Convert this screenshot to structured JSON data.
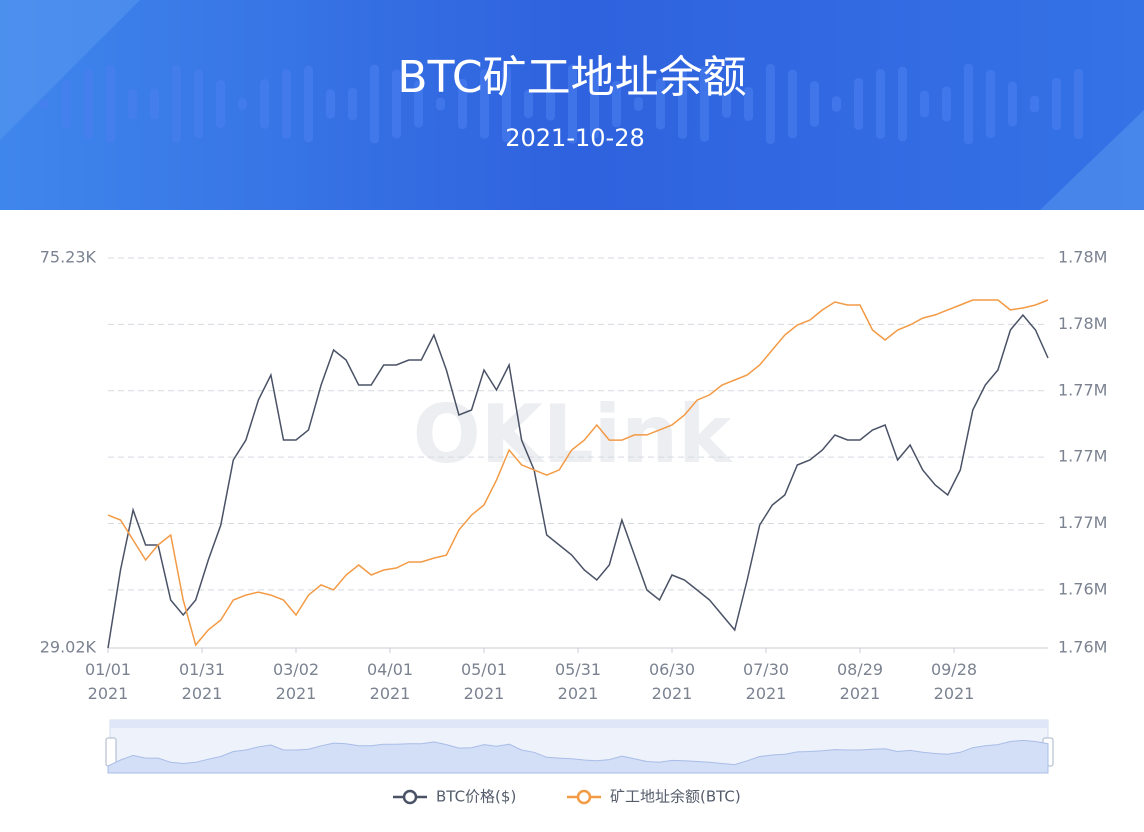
{
  "header": {
    "title": "BTC矿工地址余额",
    "date": "2021-10-28"
  },
  "watermark": "OKLink",
  "chart_data": {
    "type": "line",
    "x": [
      "2021-01-01",
      "2021-01-05",
      "2021-01-09",
      "2021-01-13",
      "2021-01-17",
      "2021-01-21",
      "2021-01-25",
      "2021-01-29",
      "2021-02-02",
      "2021-02-06",
      "2021-02-10",
      "2021-02-14",
      "2021-02-18",
      "2021-02-22",
      "2021-02-26",
      "2021-03-02",
      "2021-03-06",
      "2021-03-10",
      "2021-03-14",
      "2021-03-18",
      "2021-03-22",
      "2021-03-26",
      "2021-03-30",
      "2021-04-03",
      "2021-04-07",
      "2021-04-11",
      "2021-04-15",
      "2021-04-19",
      "2021-04-23",
      "2021-04-27",
      "2021-05-01",
      "2021-05-05",
      "2021-05-09",
      "2021-05-13",
      "2021-05-17",
      "2021-05-21",
      "2021-05-25",
      "2021-05-29",
      "2021-06-02",
      "2021-06-06",
      "2021-06-10",
      "2021-06-14",
      "2021-06-18",
      "2021-06-22",
      "2021-06-26",
      "2021-06-30",
      "2021-07-04",
      "2021-07-08",
      "2021-07-12",
      "2021-07-16",
      "2021-07-20",
      "2021-07-24",
      "2021-07-28",
      "2021-08-01",
      "2021-08-05",
      "2021-08-09",
      "2021-08-13",
      "2021-08-17",
      "2021-08-21",
      "2021-08-25",
      "2021-08-29",
      "2021-09-02",
      "2021-09-06",
      "2021-09-10",
      "2021-09-14",
      "2021-09-18",
      "2021-09-22",
      "2021-09-26",
      "2021-09-30",
      "2021-10-04",
      "2021-10-08",
      "2021-10-12",
      "2021-10-16",
      "2021-10-20",
      "2021-10-24",
      "2021-10-28"
    ],
    "xlim": [
      "2021-01-01",
      "2021-10-28"
    ],
    "xticks": [
      {
        "value": "2021-01-01",
        "label": "01/01\n2021"
      },
      {
        "value": "2021-01-31",
        "label": "01/31\n2021"
      },
      {
        "value": "2021-03-02",
        "label": "03/02\n2021"
      },
      {
        "value": "2021-04-01",
        "label": "04/01\n2021"
      },
      {
        "value": "2021-05-01",
        "label": "05/01\n2021"
      },
      {
        "value": "2021-05-31",
        "label": "05/31\n2021"
      },
      {
        "value": "2021-06-30",
        "label": "06/30\n2021"
      },
      {
        "value": "2021-07-30",
        "label": "07/30\n2021"
      },
      {
        "value": "2021-08-29",
        "label": "08/29\n2021"
      },
      {
        "value": "2021-09-28",
        "label": "09/28\n2021"
      }
    ],
    "ylim": [
      29020,
      75230
    ],
    "yticks": [
      {
        "value": 75230,
        "label": "75.23K"
      },
      {
        "value": 29020,
        "label": "29.02K"
      }
    ],
    "y2lim": [
      1758500,
      1782000
    ],
    "y2ticks": [
      {
        "value": 1782000,
        "label": "1.78M"
      },
      {
        "value": 1778000,
        "label": "1.78M"
      },
      {
        "value": 1774000,
        "label": "1.77M"
      },
      {
        "value": 1770000,
        "label": "1.77M"
      },
      {
        "value": 1766000,
        "label": "1.77M"
      },
      {
        "value": 1762000,
        "label": "1.76M"
      },
      {
        "value": 1758500,
        "label": "1.76M"
      }
    ],
    "grid": true,
    "series": [
      {
        "name": "BTC价格($)",
        "color": "#4a5266",
        "values": [
          29020,
          38260,
          45370,
          41220,
          41220,
          34710,
          32930,
          34710,
          39450,
          43590,
          51300,
          53670,
          58410,
          61370,
          53670,
          53670,
          54850,
          60180,
          64330,
          63150,
          60180,
          60180,
          62550,
          62550,
          63150,
          63150,
          66110,
          61960,
          56630,
          57220,
          61960,
          59590,
          62550,
          53670,
          50110,
          42410,
          41220,
          40040,
          38260,
          37080,
          38860,
          44190,
          40040,
          35890,
          34710,
          37670,
          37080,
          35890,
          34710,
          32930,
          31150,
          37080,
          43590,
          45960,
          47150,
          50700,
          51300,
          52480,
          54260,
          53670,
          53670,
          54850,
          55440,
          51300,
          53070,
          50110,
          48330,
          47150,
          50110,
          57220,
          60180,
          61960,
          66700,
          68480,
          66700,
          63380
        ]
      },
      {
        "name": "矿工地址余额(BTC)",
        "color": "#f39a45",
        "axis": "y2",
        "values": [
          1766510,
          1766210,
          1765010,
          1763800,
          1764710,
          1765310,
          1761390,
          1758680,
          1759590,
          1760190,
          1761390,
          1761690,
          1761870,
          1761690,
          1761390,
          1760490,
          1761690,
          1762300,
          1762000,
          1762900,
          1763500,
          1762900,
          1763200,
          1763320,
          1763680,
          1763680,
          1763920,
          1764100,
          1765610,
          1766510,
          1767120,
          1768620,
          1770430,
          1769530,
          1769230,
          1768920,
          1769230,
          1770430,
          1771030,
          1771940,
          1771030,
          1771030,
          1771340,
          1771340,
          1771640,
          1771940,
          1772540,
          1773440,
          1773750,
          1774350,
          1774650,
          1774950,
          1775550,
          1776460,
          1777360,
          1777960,
          1778260,
          1778870,
          1779350,
          1779170,
          1779170,
          1777660,
          1777060,
          1777660,
          1777960,
          1778380,
          1778570,
          1778870,
          1779170,
          1779470,
          1779470,
          1779470,
          1778870,
          1778990,
          1779170,
          1779470
        ]
      }
    ]
  }
}
